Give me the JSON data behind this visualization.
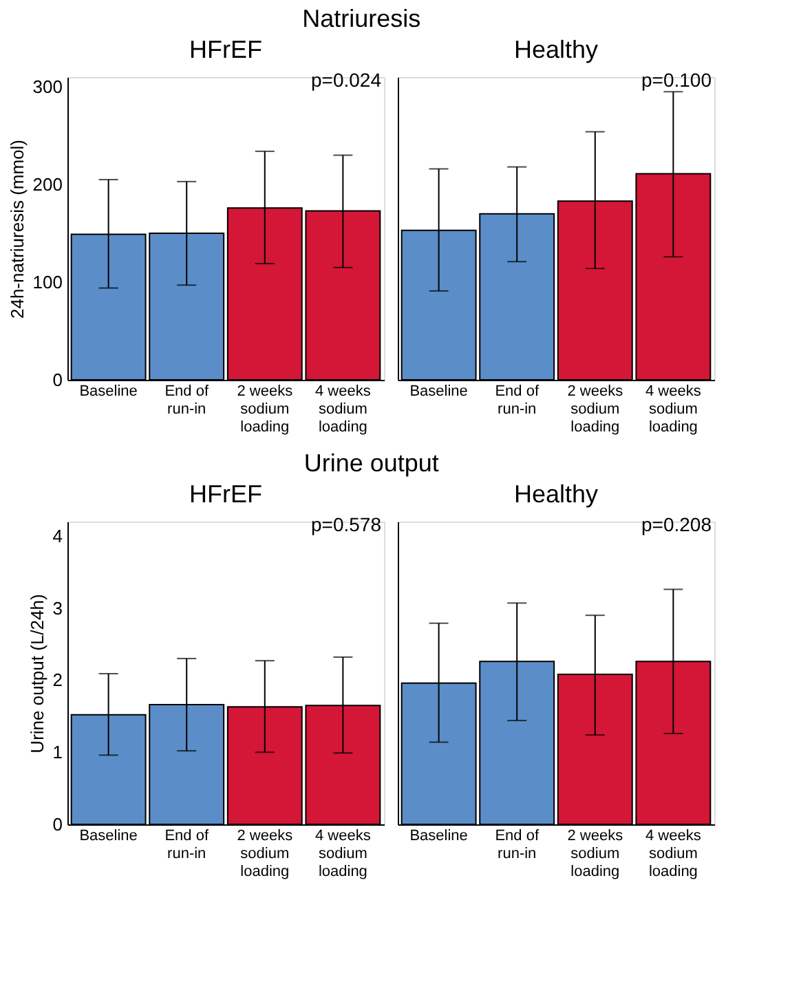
{
  "chart_data": [
    {
      "type": "bar",
      "title": "Natriuresis",
      "subtitle": "HFrEF",
      "ylabel": "24h-natriuresis (mmol)",
      "categories": [
        "Baseline",
        "End of run-in",
        "2 weeks sodium loading",
        "4 weeks sodium loading"
      ],
      "values": [
        149,
        150,
        176,
        173
      ],
      "colors": [
        "#5b8ec9",
        "#5b8ec9",
        "#d41637",
        "#d41637"
      ],
      "errors": [
        [
          94,
          205
        ],
        [
          97,
          203
        ],
        [
          119,
          234
        ],
        [
          115,
          230
        ]
      ],
      "ylim": [
        0,
        310
      ],
      "yticks": [
        0,
        100,
        200,
        300
      ],
      "annotations": [
        "p=0.024"
      ]
    },
    {
      "type": "bar",
      "subtitle": "Healthy",
      "categories": [
        "Baseline",
        "End of run-in",
        "2 weeks sodium loading",
        "4 weeks sodium loading"
      ],
      "values": [
        153,
        170,
        183,
        211
      ],
      "colors": [
        "#5b8ec9",
        "#5b8ec9",
        "#d41637",
        "#d41637"
      ],
      "errors": [
        [
          91,
          216
        ],
        [
          121,
          218
        ],
        [
          114,
          254
        ],
        [
          126,
          295
        ]
      ],
      "ylim": [
        0,
        310
      ],
      "yticks": [
        0,
        100,
        200,
        300
      ],
      "tick_labels": "x",
      "annotations": [
        "p=0.100"
      ]
    },
    {
      "type": "bar",
      "title": "Urine output",
      "subtitle": "HFrEF",
      "ylabel": "Urine output (L/24h)",
      "categories": [
        "Baseline",
        "End of run-in",
        "2 weeks sodium loading",
        "4 weeks sodium loading"
      ],
      "values": [
        1.52,
        1.66,
        1.63,
        1.65
      ],
      "colors": [
        "#5b8ec9",
        "#5b8ec9",
        "#d41637",
        "#d41637"
      ],
      "errors": [
        [
          0.96,
          2.09
        ],
        [
          1.02,
          2.3
        ],
        [
          1.0,
          2.27
        ],
        [
          0.99,
          2.32
        ]
      ],
      "ylim": [
        0,
        4.2
      ],
      "yticks": [
        0,
        1,
        2,
        3,
        4
      ],
      "annotations": [
        "p=0.578"
      ]
    },
    {
      "type": "bar",
      "subtitle": "Healthy",
      "categories": [
        "Baseline",
        "End of run-in",
        "2 weeks sodium loading",
        "4 weeks sodium loading"
      ],
      "values": [
        1.96,
        2.26,
        2.08,
        2.26
      ],
      "colors": [
        "#5b8ec9",
        "#5b8ec9",
        "#d41637",
        "#d41637"
      ],
      "errors": [
        [
          1.14,
          2.79
        ],
        [
          1.44,
          3.07
        ],
        [
          1.24,
          2.9
        ],
        [
          1.26,
          3.26
        ]
      ],
      "ylim": [
        0,
        4.2
      ],
      "yticks": [
        0,
        1,
        2,
        3,
        4
      ],
      "tick_labels": "x",
      "annotations": [
        "p=0.208"
      ]
    }
  ]
}
